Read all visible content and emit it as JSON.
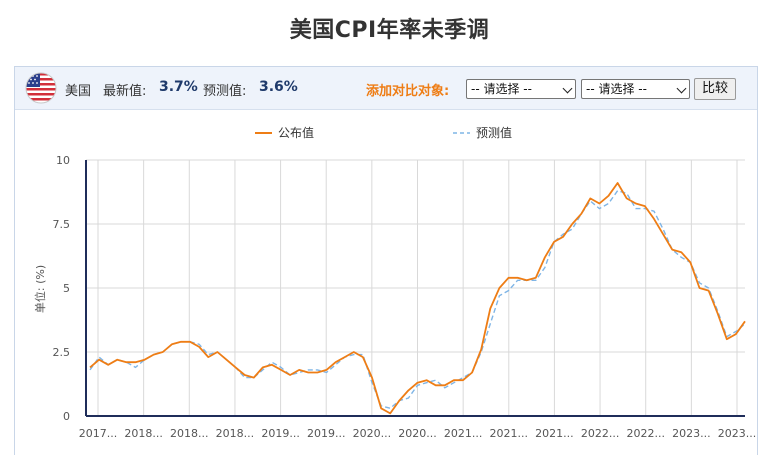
{
  "title": "美国CPI年率未季调",
  "info": {
    "country": "美国",
    "latest_label": "最新值:",
    "latest_value": "3.7%",
    "forecast_label": "预测值:",
    "forecast_value": "3.6%",
    "flag_icon": "us-flag-icon"
  },
  "compare": {
    "label": "添加对比对象:",
    "select1": "-- 请选择 --",
    "select2": "-- 请选择 --",
    "button": "比较"
  },
  "colors": {
    "published": "#ee7d15",
    "forecast": "#7fb5e6",
    "axis": "#1f2d5a",
    "grid": "#d9d9d9",
    "info_bg": "#eef3fb"
  },
  "chart_data": {
    "type": "line",
    "ylabel": "单位: (%)",
    "ylim": [
      0,
      10
    ],
    "yticks": [
      0,
      2.5,
      5,
      7.5,
      10
    ],
    "ytick_labels": [
      "0",
      "2.5",
      "5",
      "7.5",
      "10"
    ],
    "xtick_labels": [
      "2017...",
      "2018...",
      "2018...",
      "2018...",
      "2019...",
      "2019...",
      "2020...",
      "2020...",
      "2021...",
      "2021...",
      "2021...",
      "2022...",
      "2022...",
      "2023...",
      "2023..."
    ],
    "legend": [
      "公布值",
      "预测值"
    ],
    "legend_position": "top-center",
    "grid": true,
    "x": [
      "2017-08",
      "2017-09",
      "2017-10",
      "2017-11",
      "2017-12",
      "2018-01",
      "2018-02",
      "2018-03",
      "2018-04",
      "2018-05",
      "2018-06",
      "2018-07",
      "2018-08",
      "2018-09",
      "2018-10",
      "2018-11",
      "2018-12",
      "2019-01",
      "2019-02",
      "2019-03",
      "2019-04",
      "2019-05",
      "2019-06",
      "2019-07",
      "2019-08",
      "2019-09",
      "2019-10",
      "2019-11",
      "2019-12",
      "2020-01",
      "2020-02",
      "2020-03",
      "2020-04",
      "2020-05",
      "2020-06",
      "2020-07",
      "2020-08",
      "2020-09",
      "2020-10",
      "2020-11",
      "2020-12",
      "2021-01",
      "2021-02",
      "2021-03",
      "2021-04",
      "2021-05",
      "2021-06",
      "2021-07",
      "2021-08",
      "2021-09",
      "2021-10",
      "2021-11",
      "2021-12",
      "2022-01",
      "2022-02",
      "2022-03",
      "2022-04",
      "2022-05",
      "2022-06",
      "2022-07",
      "2022-08",
      "2022-09",
      "2022-10",
      "2022-11",
      "2022-12",
      "2023-01",
      "2023-02",
      "2023-03",
      "2023-04",
      "2023-05",
      "2023-06",
      "2023-07",
      "2023-08"
    ],
    "series": [
      {
        "name": "公布值",
        "style": "solid",
        "values": [
          1.9,
          2.2,
          2.0,
          2.2,
          2.1,
          2.1,
          2.2,
          2.4,
          2.5,
          2.8,
          2.9,
          2.9,
          2.7,
          2.3,
          2.5,
          2.2,
          1.9,
          1.6,
          1.5,
          1.9,
          2.0,
          1.8,
          1.6,
          1.8,
          1.7,
          1.7,
          1.8,
          2.1,
          2.3,
          2.5,
          2.3,
          1.5,
          0.3,
          0.1,
          0.6,
          1.0,
          1.3,
          1.4,
          1.2,
          1.2,
          1.4,
          1.4,
          1.7,
          2.6,
          4.2,
          5.0,
          5.4,
          5.4,
          5.3,
          5.4,
          6.2,
          6.8,
          7.0,
          7.5,
          7.9,
          8.5,
          8.3,
          8.6,
          9.1,
          8.5,
          8.3,
          8.2,
          7.7,
          7.1,
          6.5,
          6.4,
          6.0,
          5.0,
          4.9,
          4.0,
          3.0,
          3.2,
          3.7
        ]
      },
      {
        "name": "预测值",
        "style": "dashed",
        "values": [
          1.8,
          2.3,
          2.0,
          2.2,
          2.1,
          1.9,
          2.2,
          2.4,
          2.5,
          2.8,
          2.9,
          2.9,
          2.8,
          2.4,
          2.5,
          2.2,
          1.9,
          1.5,
          1.5,
          1.8,
          2.1,
          1.9,
          1.6,
          1.7,
          1.8,
          1.8,
          1.7,
          2.0,
          2.3,
          2.4,
          2.4,
          1.3,
          0.4,
          0.3,
          0.6,
          0.7,
          1.2,
          1.3,
          1.4,
          1.1,
          1.3,
          1.5,
          1.7,
          2.5,
          3.6,
          4.7,
          4.9,
          5.3,
          5.3,
          5.3,
          5.8,
          6.8,
          7.1,
          7.3,
          7.9,
          8.4,
          8.1,
          8.3,
          8.8,
          8.7,
          8.1,
          8.1,
          8.0,
          7.3,
          6.5,
          6.2,
          6.0,
          5.2,
          5.0,
          4.1,
          3.1,
          3.3,
          3.6
        ]
      }
    ]
  }
}
